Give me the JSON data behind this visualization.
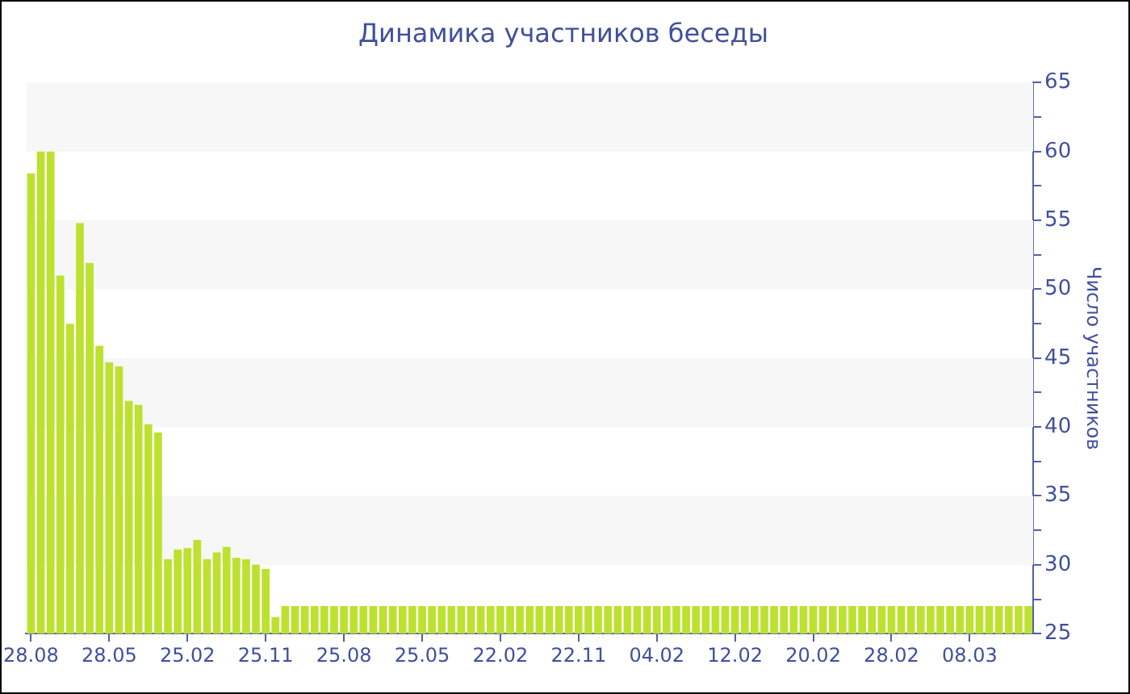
{
  "chart_data": {
    "type": "bar",
    "title": "Динамика участников беседы",
    "ylabel": "Число участников",
    "categories": [
      "28.08",
      null,
      null,
      null,
      null,
      null,
      null,
      null,
      "28.05",
      null,
      null,
      null,
      null,
      null,
      null,
      null,
      "25.02",
      null,
      null,
      null,
      null,
      null,
      null,
      null,
      "25.11",
      null,
      null,
      null,
      null,
      null,
      null,
      null,
      "25.08",
      null,
      null,
      null,
      null,
      null,
      null,
      null,
      "25.05",
      null,
      null,
      null,
      null,
      null,
      null,
      null,
      "22.02",
      null,
      null,
      null,
      null,
      null,
      null,
      null,
      "22.11",
      null,
      null,
      null,
      null,
      null,
      null,
      null,
      "04.02",
      null,
      null,
      null,
      null,
      null,
      null,
      null,
      "12.02",
      null,
      null,
      null,
      null,
      null,
      null,
      null,
      "20.02",
      null,
      null,
      null,
      null,
      null,
      null,
      null,
      "28.02",
      null,
      null,
      null,
      null,
      null,
      null,
      null,
      "08.03",
      null,
      null,
      null,
      null,
      null,
      null
    ],
    "values": [
      58.4,
      60,
      60,
      51,
      47.5,
      54.8,
      51.9,
      45.9,
      44.7,
      44.4,
      41.9,
      41.6,
      40.2,
      39.6,
      30.4,
      31.1,
      31.2,
      31.8,
      30.4,
      30.9,
      31.3,
      30.5,
      30.4,
      30.0,
      29.7,
      26.2,
      27,
      27,
      27,
      27,
      27,
      27,
      27,
      27,
      27,
      27,
      27,
      27,
      27,
      27,
      27,
      27,
      27,
      27,
      27,
      27,
      27,
      27,
      27,
      27,
      27,
      27,
      27,
      27,
      27,
      27,
      27,
      27,
      27,
      27,
      27,
      27,
      27,
      27,
      27,
      27,
      27,
      27,
      27,
      27,
      27,
      27,
      27,
      27,
      27,
      27,
      27,
      27,
      27,
      27,
      27,
      27,
      27,
      27,
      27,
      27,
      27,
      27,
      27,
      27,
      27,
      27,
      27,
      27,
      27,
      27,
      27,
      27,
      27,
      27,
      27,
      27,
      27
    ],
    "color": "#bde12f",
    "ylim": [
      25,
      65
    ],
    "yticks": [
      25,
      {
        "value": 27.5,
        "label": null
      },
      30,
      {
        "value": 32.5,
        "label": null
      },
      35,
      {
        "value": 37.5,
        "label": null
      },
      40,
      {
        "value": 42.5,
        "label": null
      },
      45,
      {
        "value": 47.5,
        "label": null
      },
      50,
      {
        "value": 52.5,
        "label": null
      },
      55,
      {
        "value": 57.5,
        "label": null
      },
      60,
      {
        "value": 62.5,
        "label": null
      },
      65
    ],
    "bands": [
      {
        "axis": "y",
        "from": 30,
        "to": 35,
        "color": "#f7f7f7"
      },
      {
        "axis": "y",
        "from": 40,
        "to": 45,
        "color": "#f7f7f7"
      },
      {
        "axis": "y",
        "from": 50,
        "to": 55,
        "color": "#f7f7f7"
      },
      {
        "axis": "y",
        "from": 60,
        "to": 65,
        "color": "#f7f7f7"
      }
    ]
  }
}
